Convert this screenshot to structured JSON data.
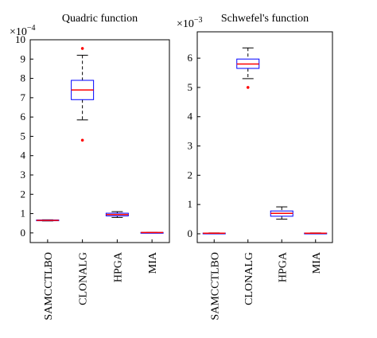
{
  "chart_data": [
    {
      "type": "box",
      "title": "Quadric function",
      "y_multiplier": {
        "base": "×10",
        "exponent": "−4"
      },
      "categories": [
        "SAMCCTLBO",
        "CLONALG",
        "HPGA",
        "MIA"
      ],
      "boxes": [
        {
          "whislo": 0.62,
          "q1": 0.63,
          "med": 0.65,
          "q3": 0.67,
          "whishi": 0.68
        },
        {
          "whislo": 5.85,
          "q1": 6.9,
          "med": 7.4,
          "q3": 7.9,
          "whishi": 9.2,
          "outliers": [
            9.55,
            4.8
          ]
        },
        {
          "whislo": 0.8,
          "q1": 0.88,
          "med": 0.95,
          "q3": 1.02,
          "whishi": 1.1
        },
        {
          "whislo": 0.01,
          "q1": 0.015,
          "med": 0.02,
          "q3": 0.025,
          "whishi": 0.03
        }
      ],
      "box_color": "#0000ff",
      "median_color": "#ff0000",
      "outlier_color": "#ff0000",
      "ylim": [
        -0.5,
        10
      ],
      "yticks": [
        0,
        1,
        2,
        3,
        4,
        5,
        6,
        7,
        8,
        9,
        10
      ]
    },
    {
      "type": "box",
      "title": "Schwefel's function",
      "y_multiplier": {
        "base": "×10",
        "exponent": "−3"
      },
      "categories": [
        "SAMCCTLBO",
        "CLONALG",
        "HPGA",
        "MIA"
      ],
      "boxes": [
        {
          "whislo": 0.01,
          "q1": 0.015,
          "med": 0.02,
          "q3": 0.025,
          "whishi": 0.03
        },
        {
          "whislo": 5.3,
          "q1": 5.65,
          "med": 5.8,
          "q3": 5.97,
          "whishi": 6.35,
          "outliers": [
            5.0
          ]
        },
        {
          "whislo": 0.5,
          "q1": 0.6,
          "med": 0.7,
          "q3": 0.78,
          "whishi": 0.92
        },
        {
          "whislo": 0.01,
          "q1": 0.015,
          "med": 0.02,
          "q3": 0.025,
          "whishi": 0.03
        }
      ],
      "box_color": "#0000ff",
      "median_color": "#ff0000",
      "outlier_color": "#ff0000",
      "ylim": [
        -0.3,
        6.9
      ],
      "yticks": [
        0,
        1,
        2,
        3,
        4,
        5,
        6
      ]
    }
  ]
}
